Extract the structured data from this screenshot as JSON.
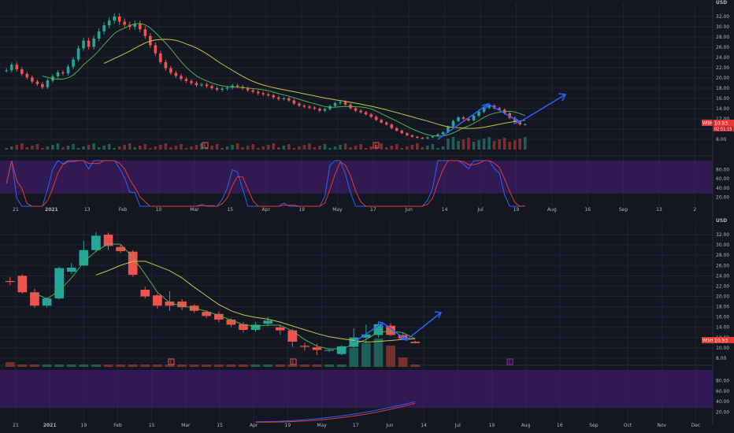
{
  "colors": {
    "background": "#131722",
    "grid": "#1f2433",
    "axis_text": "#b2b5be",
    "up": "#26a69a",
    "down": "#ef5350",
    "ma_fast": "#4caf50",
    "ma_slow": "#c9c53a",
    "stoch_k": "#2962ff",
    "stoch_d": "#e53935",
    "stoch_band": "#4a1d7a",
    "arrow": "#2962ff",
    "price_tag": "#e53935",
    "volume_up": "#1f5f58",
    "volume_down": "#7a2f2f"
  },
  "icons": [
    "earnings-flag-icon",
    "projection-arrow-icon"
  ],
  "chart_data": [
    {
      "type": "candlestick",
      "timeframe": "daily",
      "currency_label": "USD",
      "ylim": [
        6,
        34
      ],
      "y_ticks": [
        "32.00",
        "30.00",
        "28.00",
        "26.00",
        "24.00",
        "22.00",
        "20.00",
        "18.00",
        "16.00",
        "14.00",
        "12.00",
        "10.00",
        "8.00"
      ],
      "x_ticks": [
        "21",
        "2021",
        "13",
        "Feb",
        "10",
        "Mar",
        "15",
        "Apr",
        "19",
        "May",
        "17",
        "Jun",
        "14",
        "Jul",
        "19",
        "Aug",
        "16",
        "Sep",
        "13",
        "2"
      ],
      "last_price_label": "WISH",
      "last_price": "10.93",
      "timer": "02:51:15",
      "earnings_markers": [
        "E",
        "E"
      ],
      "indicators": [
        "SMA fast",
        "SMA slow",
        "Volume",
        "Stoch RSI"
      ],
      "oscillator_ticks": [
        "80.00",
        "60.00",
        "40.00",
        "20.00"
      ],
      "closes": [
        21.5,
        22.6,
        21.7,
        20.8,
        20.1,
        19.3,
        18.8,
        18.2,
        19.5,
        20.3,
        21.1,
        20.9,
        22.2,
        23.6,
        25.8,
        27.3,
        26.1,
        27.7,
        29.1,
        30.3,
        31.2,
        32.0,
        31.0,
        30.4,
        30.0,
        30.6,
        29.5,
        28.2,
        26.4,
        24.8,
        23.1,
        21.9,
        21.0,
        20.4,
        19.8,
        19.4,
        19.0,
        18.6,
        18.7,
        18.4,
        18.0,
        17.7,
        17.9,
        18.1,
        18.5,
        18.3,
        18.0,
        17.6,
        17.3,
        17.0,
        16.8,
        16.6,
        16.2,
        15.9,
        16.0,
        15.6,
        15.0,
        14.6,
        14.4,
        14.2,
        14.0,
        13.6,
        13.9,
        14.5,
        15.1,
        15.3,
        14.8,
        14.1,
        13.6,
        13.3,
        12.9,
        12.4,
        11.8,
        11.3,
        10.9,
        10.2,
        9.7,
        9.2,
        8.8,
        8.5,
        8.3,
        8.2,
        8.4,
        8.6,
        9.0,
        9.4,
        10.5,
        11.6,
        12.3,
        12.0,
        11.7,
        12.6,
        13.4,
        14.2,
        14.6,
        14.1,
        13.8,
        13.1,
        12.2,
        11.4,
        10.9,
        10.93
      ]
    },
    {
      "type": "candlestick",
      "timeframe": "weekly",
      "currency_label": "USD",
      "ylim": [
        6,
        34
      ],
      "y_ticks": [
        "32.00",
        "30.00",
        "28.00",
        "26.00",
        "24.00",
        "22.00",
        "20.00",
        "18.00",
        "16.00",
        "14.00",
        "12.00",
        "10.00",
        "8.00"
      ],
      "x_ticks": [
        "21",
        "2021",
        "19",
        "Feb",
        "15",
        "Mar",
        "15",
        "Apr",
        "19",
        "May",
        "17",
        "Jun",
        "14",
        "Jul",
        "19",
        "Aug",
        "16",
        "Sep",
        "Oct",
        "Nov",
        "Dec"
      ],
      "last_price_label": "WISH",
      "last_price": "10.93",
      "earnings_markers": [
        "E",
        "E",
        "E"
      ],
      "indicators": [
        "SMA fast",
        "SMA slow",
        "Volume",
        "Stoch RSI"
      ],
      "oscillator_ticks": [
        "80.00",
        "60.00",
        "40.00",
        "20.00"
      ],
      "candles": [
        {
          "o": 23.0,
          "h": 23.8,
          "l": 22.2,
          "c": 22.8
        },
        {
          "o": 24.0,
          "h": 24.3,
          "l": 20.5,
          "c": 20.8
        },
        {
          "o": 20.8,
          "h": 21.5,
          "l": 17.8,
          "c": 18.2
        },
        {
          "o": 18.2,
          "h": 19.8,
          "l": 17.8,
          "c": 19.6
        },
        {
          "o": 19.6,
          "h": 25.8,
          "l": 19.4,
          "c": 25.5
        },
        {
          "o": 24.8,
          "h": 26.5,
          "l": 24.4,
          "c": 25.6
        },
        {
          "o": 26.0,
          "h": 30.8,
          "l": 25.9,
          "c": 29.0
        },
        {
          "o": 29.0,
          "h": 32.5,
          "l": 28.6,
          "c": 31.8
        },
        {
          "o": 32.0,
          "h": 32.4,
          "l": 29.0,
          "c": 29.8
        },
        {
          "o": 29.6,
          "h": 30.0,
          "l": 28.4,
          "c": 28.8
        },
        {
          "o": 28.7,
          "h": 29.0,
          "l": 23.8,
          "c": 24.2
        },
        {
          "o": 21.3,
          "h": 21.9,
          "l": 19.6,
          "c": 20.0
        },
        {
          "o": 20.2,
          "h": 20.5,
          "l": 17.6,
          "c": 18.2
        },
        {
          "o": 19.0,
          "h": 21.0,
          "l": 17.2,
          "c": 18.2
        },
        {
          "o": 19.0,
          "h": 19.5,
          "l": 17.3,
          "c": 17.9
        },
        {
          "o": 18.2,
          "h": 18.5,
          "l": 16.8,
          "c": 17.2
        },
        {
          "o": 17.0,
          "h": 17.3,
          "l": 15.8,
          "c": 16.2
        },
        {
          "o": 16.6,
          "h": 17.0,
          "l": 15.0,
          "c": 15.5
        },
        {
          "o": 15.5,
          "h": 15.8,
          "l": 14.0,
          "c": 14.5
        },
        {
          "o": 14.6,
          "h": 15.0,
          "l": 13.0,
          "c": 13.5
        },
        {
          "o": 13.5,
          "h": 15.0,
          "l": 13.1,
          "c": 14.5
        },
        {
          "o": 14.7,
          "h": 16.0,
          "l": 14.2,
          "c": 15.3
        },
        {
          "o": 14.0,
          "h": 14.5,
          "l": 12.5,
          "c": 13.4
        },
        {
          "o": 13.4,
          "h": 13.7,
          "l": 10.2,
          "c": 11.2
        },
        {
          "o": 10.4,
          "h": 11.0,
          "l": 9.5,
          "c": 10.2
        },
        {
          "o": 10.1,
          "h": 10.8,
          "l": 8.6,
          "c": 9.6
        },
        {
          "o": 9.5,
          "h": 9.9,
          "l": 9.2,
          "c": 9.6
        },
        {
          "o": 8.8,
          "h": 10.5,
          "l": 8.6,
          "c": 10.3
        },
        {
          "o": 10.2,
          "h": 13.8,
          "l": 9.2,
          "c": 12.0
        },
        {
          "o": 12.0,
          "h": 14.5,
          "l": 11.0,
          "c": 12.6
        },
        {
          "o": 12.5,
          "h": 15.2,
          "l": 12.0,
          "c": 14.6
        },
        {
          "o": 14.3,
          "h": 14.8,
          "l": 12.3,
          "c": 12.5
        },
        {
          "o": 12.5,
          "h": 13.0,
          "l": 11.5,
          "c": 11.8
        },
        {
          "o": 11.2,
          "h": 11.4,
          "l": 10.9,
          "c": 10.93
        }
      ],
      "volumes": [
        2,
        1,
        1,
        1,
        1,
        1,
        1,
        1,
        1,
        1,
        1,
        1,
        1,
        1,
        1,
        1,
        1,
        1,
        1,
        1,
        1,
        1,
        1,
        1,
        1,
        1,
        1,
        1,
        8,
        10,
        12,
        9,
        4,
        1
      ]
    }
  ]
}
